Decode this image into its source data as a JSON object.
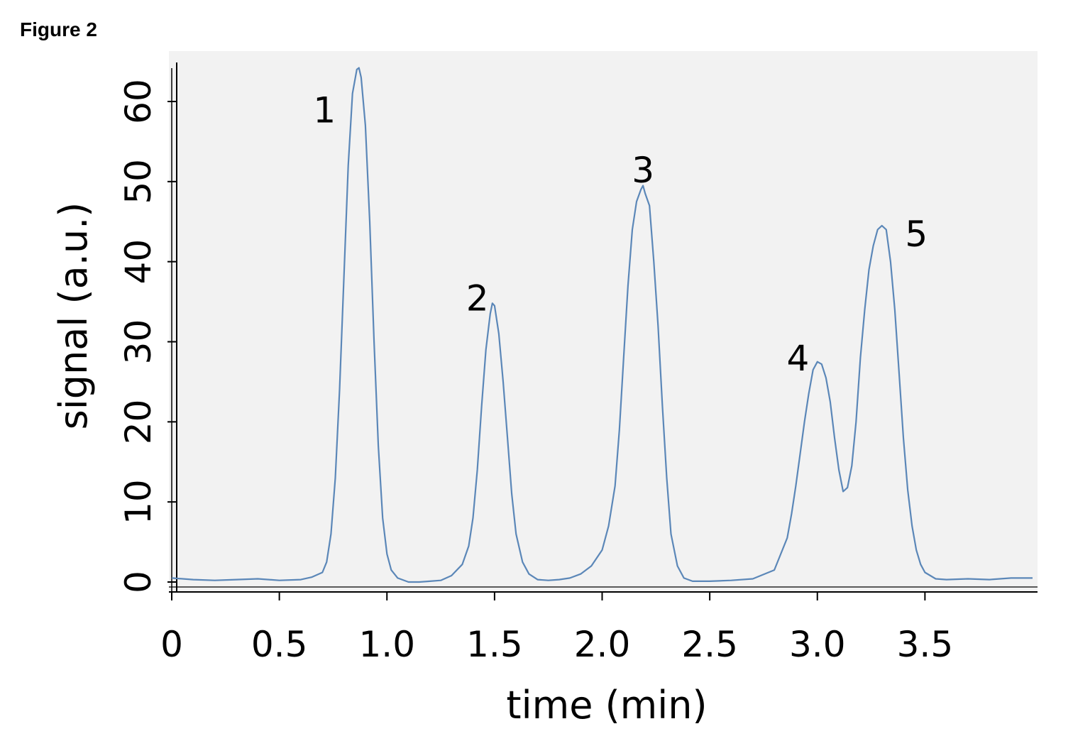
{
  "figure_label": "Figure 2",
  "chart_data": {
    "type": "line",
    "xlabel": "time (min)",
    "ylabel": "signal (a.u.)",
    "xlim": [
      0,
      4.0
    ],
    "ylim": [
      -1,
      65
    ],
    "x_ticks": [
      0,
      0.5,
      1.0,
      1.5,
      2.0,
      2.5,
      3.0,
      3.5
    ],
    "x_tick_labels": [
      "0",
      "0.5",
      "1.0",
      "1.5",
      "2.0",
      "2.5",
      "3.0",
      "3.5"
    ],
    "y_ticks": [
      0,
      10,
      20,
      30,
      40,
      50,
      60
    ],
    "y_tick_labels": [
      "0",
      "10",
      "20",
      "30",
      "40",
      "50",
      "60"
    ],
    "grid": false,
    "plot_background": "#f2f2f2",
    "line_color": "#5b87b8",
    "series": [
      {
        "x": [
          0,
          0.1,
          0.2,
          0.3,
          0.4,
          0.5,
          0.6,
          0.65,
          0.7,
          0.72,
          0.74,
          0.76,
          0.78,
          0.8,
          0.82,
          0.84,
          0.86,
          0.87,
          0.88,
          0.9,
          0.92,
          0.94,
          0.96,
          0.98,
          1.0,
          1.02,
          1.05,
          1.1,
          1.15,
          1.2,
          1.25,
          1.3,
          1.35,
          1.38,
          1.4,
          1.42,
          1.44,
          1.46,
          1.48,
          1.49,
          1.5,
          1.52,
          1.54,
          1.56,
          1.58,
          1.6,
          1.63,
          1.66,
          1.7,
          1.75,
          1.8,
          1.85,
          1.9,
          1.95,
          2.0,
          2.03,
          2.06,
          2.08,
          2.1,
          2.12,
          2.14,
          2.16,
          2.18,
          2.19,
          2.2,
          2.22,
          2.24,
          2.26,
          2.28,
          2.3,
          2.32,
          2.35,
          2.38,
          2.42,
          2.5,
          2.6,
          2.7,
          2.8,
          2.83,
          2.86,
          2.88,
          2.9,
          2.92,
          2.94,
          2.96,
          2.98,
          3.0,
          3.02,
          3.04,
          3.06,
          3.08,
          3.1,
          3.12,
          3.14,
          3.16,
          3.18,
          3.2,
          3.22,
          3.24,
          3.26,
          3.28,
          3.3,
          3.32,
          3.34,
          3.36,
          3.38,
          3.4,
          3.42,
          3.44,
          3.46,
          3.48,
          3.5,
          3.55,
          3.6,
          3.7,
          3.8,
          3.9,
          4.0
        ],
        "y": [
          0.5,
          0.3,
          0.2,
          0.3,
          0.4,
          0.2,
          0.3,
          0.6,
          1.2,
          2.5,
          6,
          13,
          24,
          38,
          52,
          61,
          64,
          64.2,
          63,
          57,
          45,
          30,
          17,
          8,
          3.5,
          1.5,
          0.5,
          0,
          0,
          0.1,
          0.2,
          0.8,
          2.2,
          4.5,
          8,
          14,
          22,
          29,
          33.5,
          34.8,
          34.5,
          31,
          25,
          18,
          11,
          6,
          2.5,
          1,
          0.3,
          0.2,
          0.3,
          0.5,
          1,
          2,
          4,
          7,
          12,
          19,
          28,
          37,
          44,
          47.5,
          49,
          49.5,
          48.5,
          47,
          40,
          32,
          22,
          13,
          6,
          2,
          0.5,
          0.1,
          0.1,
          0.2,
          0.4,
          1.5,
          3.5,
          5.5,
          8.5,
          12,
          16,
          20,
          23.5,
          26.5,
          27.5,
          27.2,
          25.5,
          22.5,
          18,
          14,
          11.3,
          11.8,
          14.5,
          20,
          28,
          34,
          39,
          42,
          44,
          44.5,
          44,
          40,
          34,
          26,
          18,
          11.5,
          7,
          4,
          2.2,
          1.2,
          0.4,
          0.3,
          0.4,
          0.3,
          0.5,
          0.5
        ]
      }
    ],
    "annotations": [
      {
        "text": "1",
        "x": 0.71,
        "y": 59
      },
      {
        "text": "2",
        "x": 1.42,
        "y": 35.5
      },
      {
        "text": "3",
        "x": 2.19,
        "y": 51.5
      },
      {
        "text": "4",
        "x": 2.91,
        "y": 28
      },
      {
        "text": "5",
        "x": 3.46,
        "y": 43.5
      }
    ]
  }
}
